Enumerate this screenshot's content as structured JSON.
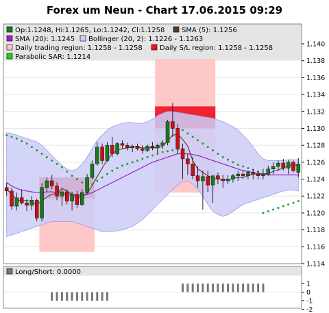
{
  "title": "Forex um Neun - Chart 17.06.2015 09:29",
  "legend": {
    "ohlc": "Op:1.1248, Hi:1.1265, Lo:1.1242, Cl:1.1258",
    "sma5": "SMA (5): 1.1256",
    "sma20": "SMA (20): 1.1245",
    "bollinger": "Bollinger (20, 2): 1.1226 - 1.1263",
    "daily_region": "Daily trading region: 1.1258 - 1.1258",
    "daily_sl": "Daily S/L region: 1.1258 - 1.1258",
    "sar": "Parabolic SAR: 1.1214"
  },
  "sub_legend": {
    "long_short": "Long/Short: 0.0000"
  },
  "colors": {
    "up": "#1a7a1a",
    "down": "#c81010",
    "sma5": "#5a3a20",
    "sma20": "#9a20c8",
    "band": "#cccdf8",
    "band_line": "#9a9ae8",
    "sar": "#1d9e2f",
    "region_light": "#ffc8c8",
    "region_strong": "#f01020",
    "ls_bar": "#777777"
  },
  "chart_data": {
    "type": "candlestick",
    "ylim": [
      1.114,
      1.142
    ],
    "yticks": [
      "1.114",
      "1.116",
      "1.118",
      "1.120",
      "1.122",
      "1.124",
      "1.126",
      "1.128",
      "1.130",
      "1.132",
      "1.134",
      "1.136",
      "1.138",
      "1.140"
    ],
    "ohlc": [
      [
        1.123,
        1.1236,
        1.122,
        1.1226
      ],
      [
        1.1226,
        1.123,
        1.1204,
        1.1208
      ],
      [
        1.1208,
        1.1224,
        1.1203,
        1.1218
      ],
      [
        1.1218,
        1.1228,
        1.121,
        1.1212
      ],
      [
        1.1212,
        1.1216,
        1.1202,
        1.1209
      ],
      [
        1.1209,
        1.122,
        1.1203,
        1.1215
      ],
      [
        1.1215,
        1.1217,
        1.119,
        1.1194
      ],
      [
        1.1194,
        1.1235,
        1.119,
        1.123
      ],
      [
        1.123,
        1.1242,
        1.1225,
        1.1238
      ],
      [
        1.1238,
        1.1245,
        1.1228,
        1.1232
      ],
      [
        1.1232,
        1.1236,
        1.1215,
        1.122
      ],
      [
        1.122,
        1.1228,
        1.1208,
        1.1225
      ],
      [
        1.1225,
        1.1228,
        1.121,
        1.1214
      ],
      [
        1.1214,
        1.1225,
        1.1203,
        1.1222
      ],
      [
        1.1222,
        1.1226,
        1.1206,
        1.121
      ],
      [
        1.121,
        1.1228,
        1.1208,
        1.1224
      ],
      [
        1.1224,
        1.1246,
        1.1222,
        1.1242
      ],
      [
        1.1242,
        1.1262,
        1.124,
        1.1258
      ],
      [
        1.1258,
        1.1284,
        1.1256,
        1.1278
      ],
      [
        1.1278,
        1.1282,
        1.1258,
        1.1262
      ],
      [
        1.1262,
        1.1284,
        1.126,
        1.128
      ],
      [
        1.128,
        1.129,
        1.1266,
        1.127
      ],
      [
        1.127,
        1.1284,
        1.1268,
        1.1282
      ],
      [
        1.1282,
        1.1286,
        1.1276,
        1.128
      ],
      [
        1.128,
        1.1283,
        1.1274,
        1.1277
      ],
      [
        1.1277,
        1.1281,
        1.1272,
        1.1279
      ],
      [
        1.1279,
        1.1282,
        1.1274,
        1.1276
      ],
      [
        1.1276,
        1.128,
        1.127,
        1.1274
      ],
      [
        1.1274,
        1.1281,
        1.1272,
        1.1279
      ],
      [
        1.1279,
        1.1284,
        1.1274,
        1.1277
      ],
      [
        1.1277,
        1.1282,
        1.1271,
        1.128
      ],
      [
        1.128,
        1.1286,
        1.1276,
        1.1283
      ],
      [
        1.1283,
        1.131,
        1.128,
        1.1308
      ],
      [
        1.1308,
        1.133,
        1.129,
        1.13
      ],
      [
        1.13,
        1.1305,
        1.127,
        1.1276
      ],
      [
        1.1276,
        1.1282,
        1.124,
        1.1264
      ],
      [
        1.1264,
        1.127,
        1.1245,
        1.1258
      ],
      [
        1.1258,
        1.1266,
        1.124,
        1.1244
      ],
      [
        1.1244,
        1.1255,
        1.123,
        1.1238
      ],
      [
        1.1238,
        1.125,
        1.1204,
        1.1243
      ],
      [
        1.1243,
        1.125,
        1.1225,
        1.1233
      ],
      [
        1.1233,
        1.1242,
        1.1212,
        1.1244
      ],
      [
        1.1244,
        1.1248,
        1.1234,
        1.124
      ],
      [
        1.124,
        1.1245,
        1.123,
        1.1238
      ],
      [
        1.1238,
        1.1245,
        1.1234,
        1.124
      ],
      [
        1.124,
        1.1246,
        1.1236,
        1.1244
      ],
      [
        1.1244,
        1.125,
        1.1238,
        1.1246
      ],
      [
        1.1246,
        1.1251,
        1.124,
        1.1244
      ],
      [
        1.1244,
        1.125,
        1.124,
        1.1248
      ],
      [
        1.1248,
        1.1252,
        1.124,
        1.1246
      ],
      [
        1.1246,
        1.1249,
        1.124,
        1.1244
      ],
      [
        1.1244,
        1.1252,
        1.124,
        1.1246
      ],
      [
        1.1246,
        1.1256,
        1.1244,
        1.1252
      ],
      [
        1.1252,
        1.126,
        1.1246,
        1.1255
      ],
      [
        1.1255,
        1.1262,
        1.125,
        1.1259
      ],
      [
        1.1259,
        1.1264,
        1.125,
        1.1253
      ],
      [
        1.1253,
        1.1263,
        1.1246,
        1.126
      ],
      [
        1.126,
        1.1262,
        1.1248,
        1.125
      ],
      [
        1.1248,
        1.1265,
        1.1242,
        1.1258
      ]
    ],
    "sma5": [
      1.1228,
      1.1222,
      1.1216,
      1.1214,
      1.1215,
      1.1213,
      1.121,
      1.1214,
      1.1219,
      1.1222,
      1.1223,
      1.1229,
      1.1226,
      1.1222,
      1.1218,
      1.1219,
      1.1223,
      1.1232,
      1.1243,
      1.1253,
      1.1263,
      1.127,
      1.1274,
      1.1276,
      1.1277,
      1.1278,
      1.1278,
      1.1277,
      1.1277,
      1.1277,
      1.1277,
      1.1279,
      1.1285,
      1.1292,
      1.1293,
      1.1287,
      1.1279,
      1.1262,
      1.1252,
      1.1248,
      1.1244,
      1.1241,
      1.124,
      1.124,
      1.1239,
      1.1241,
      1.1242,
      1.1242,
      1.1244,
      1.1246,
      1.1246,
      1.1246,
      1.1247,
      1.1249,
      1.1251,
      1.1253,
      1.1256,
      1.1257,
      1.1256
    ],
    "sma20": [
      1.1236,
      1.1232,
      1.1229,
      1.1227,
      1.1226,
      1.1225,
      1.1224,
      1.1224,
      1.1225,
      1.1225,
      1.1224,
      1.1223,
      1.1222,
      1.1222,
      1.1221,
      1.1221,
      1.1222,
      1.1224,
      1.1227,
      1.123,
      1.1233,
      1.1236,
      1.1239,
      1.1242,
      1.1245,
      1.1248,
      1.1251,
      1.1254,
      1.1257,
      1.126,
      1.1262,
      1.1264,
      1.1266,
      1.1268,
      1.127,
      1.127,
      1.127,
      1.1269,
      1.1268,
      1.1266,
      1.1264,
      1.1262,
      1.126,
      1.1258,
      1.1256,
      1.1254,
      1.1252,
      1.125,
      1.1249,
      1.1248,
      1.1247,
      1.1246,
      1.1245,
      1.1245,
      1.1245,
      1.1245,
      1.1245,
      1.1245,
      1.1245
    ],
    "boll_upper": [
      1.1295,
      1.1294,
      1.1292,
      1.129,
      1.1288,
      1.1286,
      1.1284,
      1.128,
      1.1274,
      1.1268,
      1.1262,
      1.1256,
      1.1252,
      1.125,
      1.1252,
      1.1258,
      1.1266,
      1.1276,
      1.1286,
      1.1292,
      1.1298,
      1.1302,
      1.1304,
      1.1306,
      1.1307,
      1.1307,
      1.1306,
      1.1306,
      1.1308,
      1.1311,
      1.1315,
      1.1318,
      1.132,
      1.132,
      1.1319,
      1.1318,
      1.1317,
      1.1316,
      1.1315,
      1.1314,
      1.1313,
      1.1312,
      1.131,
      1.1308,
      1.1305,
      1.1302,
      1.1298,
      1.1292,
      1.1286,
      1.1278,
      1.127,
      1.1264,
      1.1262,
      1.1262,
      1.1262,
      1.1262,
      1.1263,
      1.1263,
      1.1263
    ],
    "boll_lower": [
      1.1172,
      1.1174,
      1.1176,
      1.1178,
      1.118,
      1.1182,
      1.1184,
      1.1186,
      1.1188,
      1.119,
      1.119,
      1.119,
      1.119,
      1.119,
      1.1188,
      1.1186,
      1.1184,
      1.1182,
      1.118,
      1.1178,
      1.1178,
      1.1178,
      1.1179,
      1.118,
      1.1182,
      1.1184,
      1.1188,
      1.1192,
      1.1198,
      1.1204,
      1.121,
      1.1216,
      1.1222,
      1.1228,
      1.1233,
      1.1237,
      1.1238,
      1.1234,
      1.1228,
      1.122,
      1.121,
      1.1202,
      1.1198,
      1.1196,
      1.1198,
      1.1202,
      1.1206,
      1.121,
      1.1212,
      1.1214,
      1.1216,
      1.1218,
      1.122,
      1.1222,
      1.1224,
      1.1226,
      1.1227,
      1.1227,
      1.1226
    ],
    "sar": [
      1.1292,
      1.129,
      1.1288,
      1.1285,
      1.1282,
      1.1278,
      1.1274,
      1.127,
      1.1266,
      1.1262,
      1.1258,
      1.1254,
      1.1249,
      1.1244,
      1.124,
      1.1236,
      1.123,
      1.1234,
      1.1238,
      1.1242,
      1.1246,
      1.125,
      1.1253,
      1.1256,
      1.1258,
      1.126,
      1.1262,
      1.1264,
      1.1266,
      1.1268,
      1.127,
      1.1272,
      1.1273,
      1.1274,
      1.1275,
      1.1298,
      1.1294,
      1.129,
      1.1286,
      1.1282,
      1.1278,
      1.1274,
      1.127,
      1.1266,
      1.1263,
      1.126,
      1.1257,
      1.1255,
      1.1253,
      1.1251,
      1.1249,
      1.12,
      1.1202,
      1.1204,
      1.1206,
      1.1208,
      1.121,
      1.1212,
      1.1214
    ],
    "regions": [
      {
        "start": 7,
        "end": 18,
        "light_low": 1.1154,
        "light_high": 1.1242,
        "strong_low": 1.1217,
        "strong_high": 1.1242
      },
      {
        "start": 30,
        "end": 42,
        "light_low": 1.1224,
        "light_high": 1.1382,
        "strong_low": 1.13,
        "strong_high": 1.1326
      }
    ],
    "long_short": {
      "ylim": [
        -2,
        2
      ],
      "yticks": [
        "1",
        "0",
        "-1",
        "-2"
      ],
      "values": [
        0,
        0,
        0,
        0,
        0,
        0,
        0,
        0,
        0,
        -1,
        -1,
        -1,
        -1,
        -1,
        -1,
        -1,
        -1,
        -1,
        -1,
        -1,
        -1,
        0,
        0,
        0,
        0,
        0,
        0,
        0,
        0,
        0,
        0,
        0,
        0,
        0,
        0,
        1,
        1,
        1,
        1,
        1,
        1,
        1,
        1,
        1,
        1,
        1,
        1,
        1,
        1,
        1,
        1,
        1,
        0,
        0,
        0,
        0,
        0,
        0,
        0
      ]
    }
  }
}
